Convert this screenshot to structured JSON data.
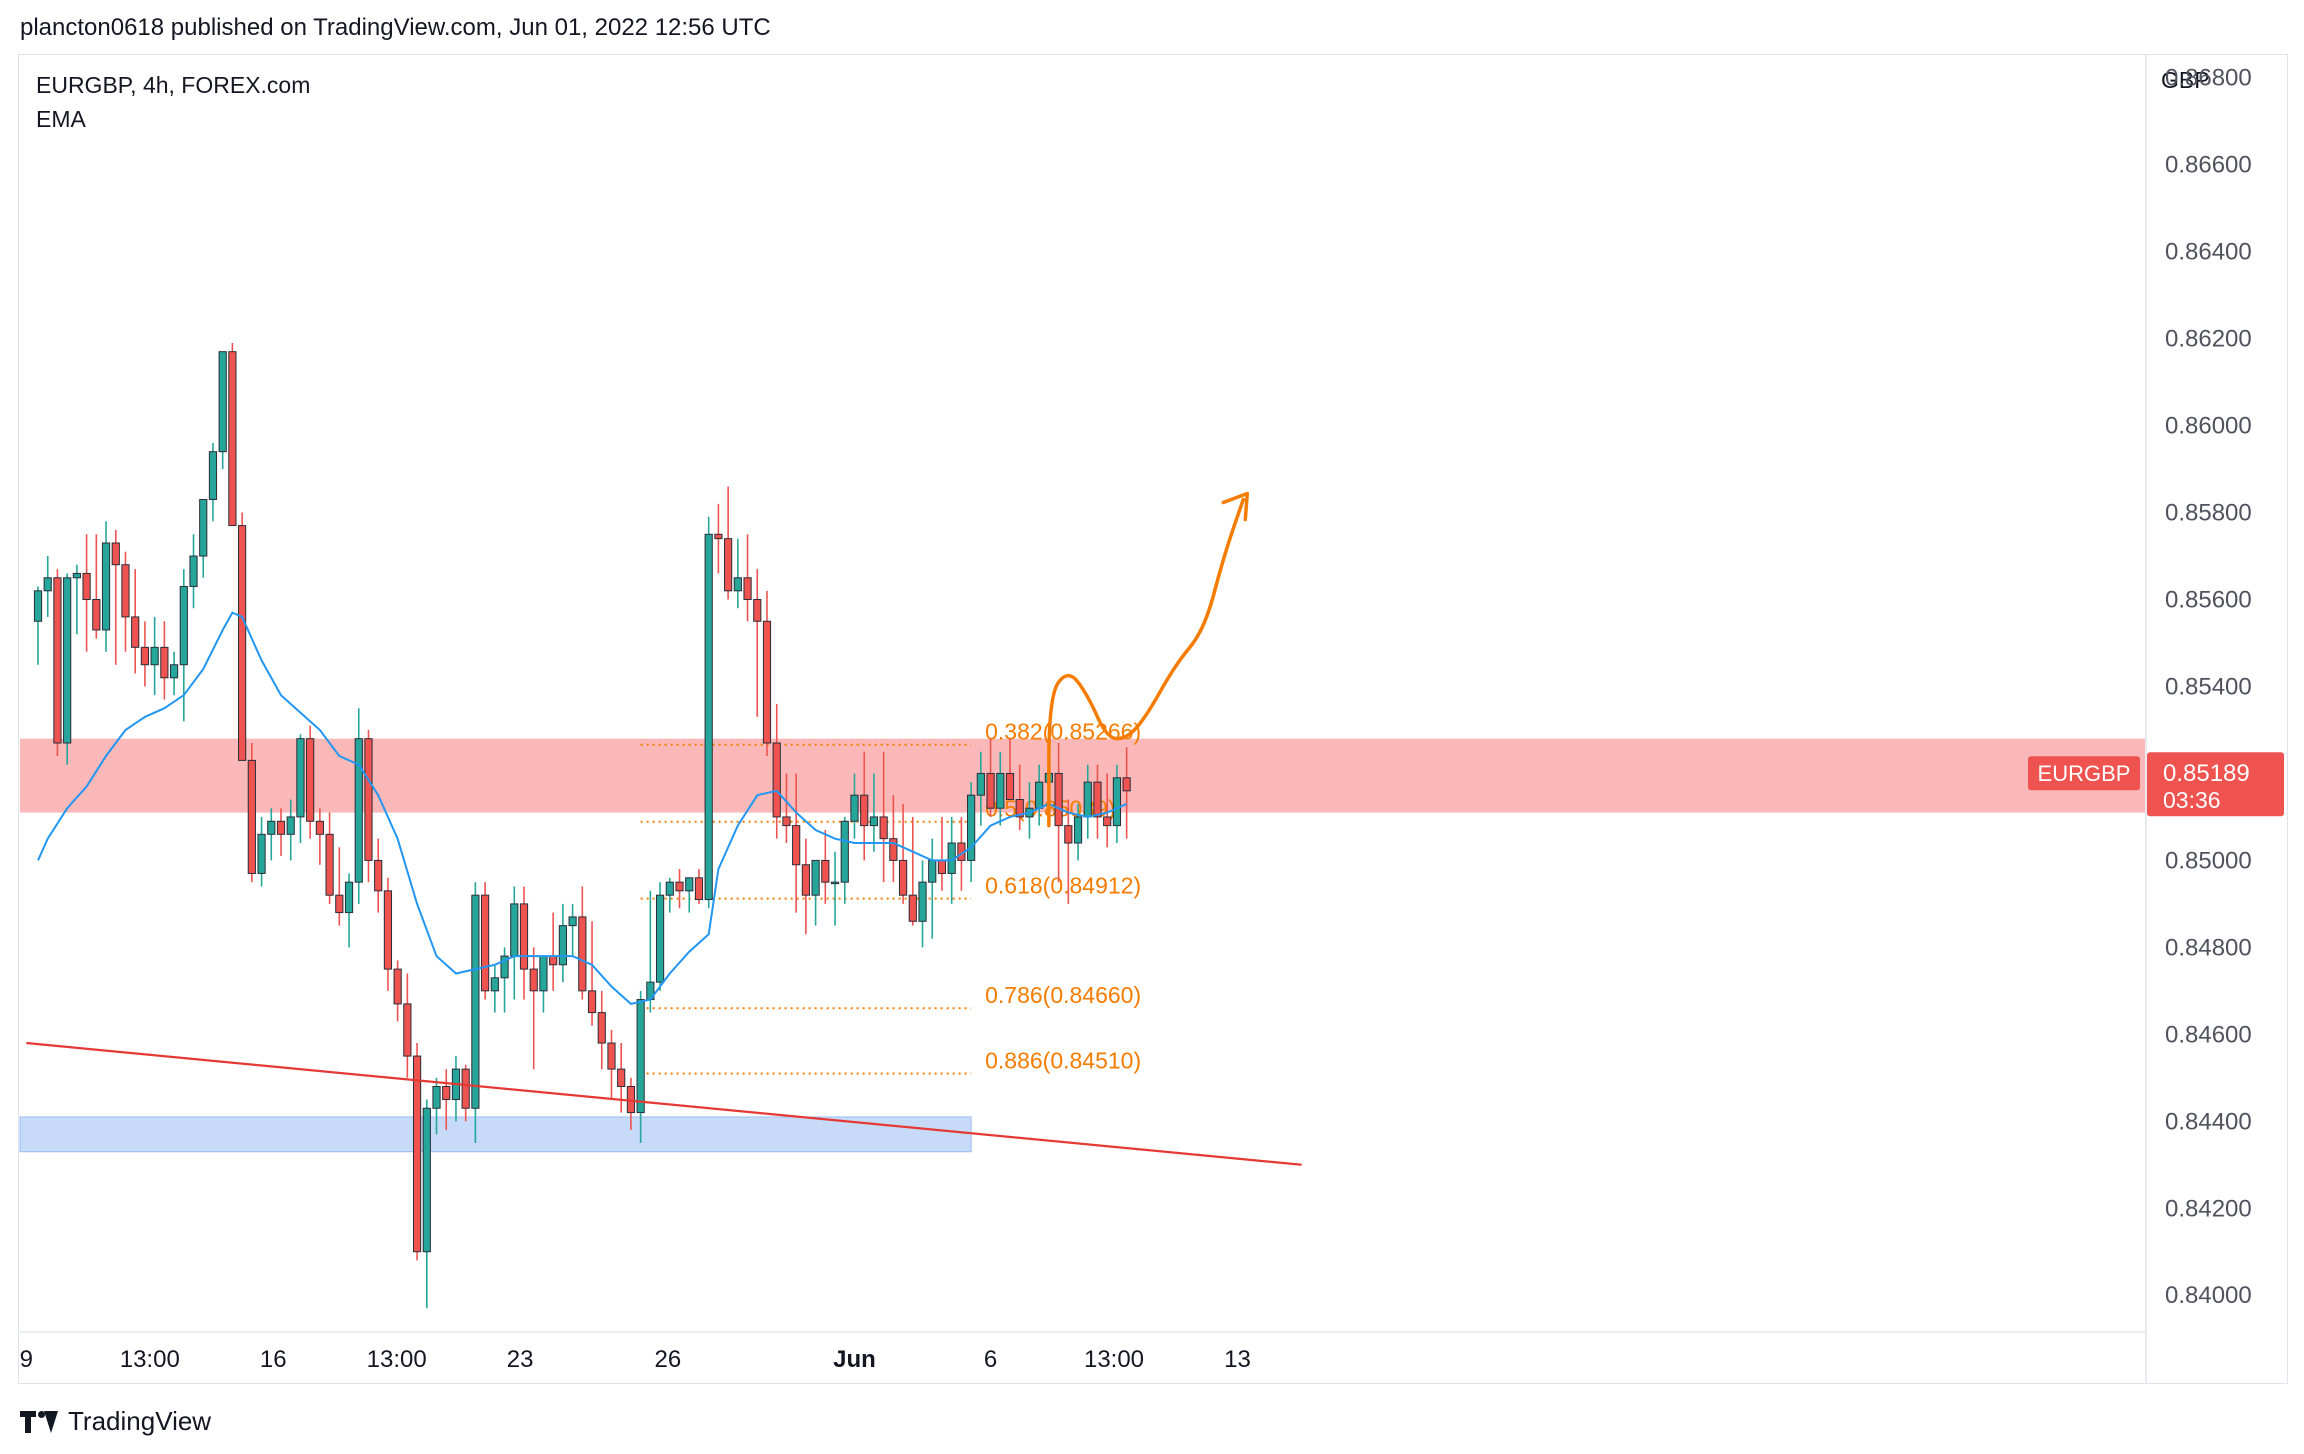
{
  "header": {
    "text": "plancton0618 published on TradingView.com, Jun 01, 2022 12:56 UTC"
  },
  "legend": {
    "symbol": "EURGBP, 4h, FOREX.com",
    "indicator": "EMA"
  },
  "footer": {
    "brand": "TradingView",
    "logo_icon": "tradingview-logo-icon"
  },
  "colors": {
    "up": "#26a69a",
    "down": "#ef5350",
    "ema": "#2196f3",
    "fib": "#f57c00",
    "resistance_zone": "#f9a0a0",
    "support_zone": "#a9c7f5",
    "trendline": "#e53935",
    "price_tag": "#ef5350"
  },
  "chart_data": {
    "type": "candlestick",
    "currency": "GBP",
    "y_ticks": [
      "0.86800",
      "0.86600",
      "0.86400",
      "0.86200",
      "0.86000",
      "0.85800",
      "0.85600",
      "0.85400",
      "0.85200",
      "0.85000",
      "0.84800",
      "0.84600",
      "0.84400",
      "0.84200",
      "0.84000"
    ],
    "ylim": [
      0.8392,
      0.8685
    ],
    "x_ticks": [
      {
        "label": "9",
        "bar": -1.2
      },
      {
        "label": "13:00",
        "bar": 11.5
      },
      {
        "label": "16",
        "bar": 24.2
      },
      {
        "label": "13:00",
        "bar": 36.9
      },
      {
        "label": "23",
        "bar": 49.6
      },
      {
        "label": "26",
        "bar": 64.8
      },
      {
        "label": "Jun",
        "bar": 84.0,
        "bold": true
      },
      {
        "label": "6",
        "bar": 98.0
      },
      {
        "label": "13:00",
        "bar": 110.7
      },
      {
        "label": "13",
        "bar": 123.4
      }
    ],
    "last_price": {
      "symbol": "EURGBP",
      "value": "0.85189",
      "countdown": "03:36"
    },
    "ohlc": [
      [
        0.8555,
        0.8563,
        0.8545,
        0.8562
      ],
      [
        0.8562,
        0.857,
        0.8556,
        0.8565
      ],
      [
        0.8565,
        0.8567,
        0.8524,
        0.8527
      ],
      [
        0.8527,
        0.8566,
        0.8522,
        0.8565
      ],
      [
        0.8565,
        0.8568,
        0.8552,
        0.8566
      ],
      [
        0.8566,
        0.8575,
        0.8548,
        0.856
      ],
      [
        0.856,
        0.8575,
        0.8551,
        0.8553
      ],
      [
        0.8553,
        0.8578,
        0.8548,
        0.8573
      ],
      [
        0.8573,
        0.8576,
        0.8545,
        0.8568
      ],
      [
        0.8568,
        0.8571,
        0.8548,
        0.8556
      ],
      [
        0.8556,
        0.8567,
        0.8543,
        0.8549
      ],
      [
        0.8549,
        0.8555,
        0.854,
        0.8545
      ],
      [
        0.8545,
        0.8556,
        0.8538,
        0.8549
      ],
      [
        0.8549,
        0.8555,
        0.8537,
        0.8542
      ],
      [
        0.8542,
        0.8548,
        0.8538,
        0.8545
      ],
      [
        0.8545,
        0.8567,
        0.8532,
        0.8563
      ],
      [
        0.8563,
        0.8575,
        0.8558,
        0.857
      ],
      [
        0.857,
        0.8582,
        0.8565,
        0.8583
      ],
      [
        0.8583,
        0.8596,
        0.8578,
        0.8594
      ],
      [
        0.8594,
        0.8617,
        0.859,
        0.8617
      ],
      [
        0.8617,
        0.8619,
        0.8577,
        0.8577
      ],
      [
        0.8577,
        0.858,
        0.8523,
        0.8523
      ],
      [
        0.8523,
        0.8527,
        0.8495,
        0.8497
      ],
      [
        0.8497,
        0.851,
        0.8494,
        0.8506
      ],
      [
        0.8506,
        0.8512,
        0.85,
        0.8509
      ],
      [
        0.8509,
        0.8512,
        0.8501,
        0.8506
      ],
      [
        0.8506,
        0.8514,
        0.85,
        0.851
      ],
      [
        0.851,
        0.8529,
        0.8504,
        0.8528
      ],
      [
        0.8528,
        0.8531,
        0.8505,
        0.8509
      ],
      [
        0.8509,
        0.8512,
        0.8499,
        0.8506
      ],
      [
        0.8506,
        0.8511,
        0.849,
        0.8492
      ],
      [
        0.8492,
        0.8503,
        0.8485,
        0.8488
      ],
      [
        0.8488,
        0.8497,
        0.848,
        0.8495
      ],
      [
        0.8495,
        0.8535,
        0.849,
        0.8528
      ],
      [
        0.8528,
        0.853,
        0.8495,
        0.85
      ],
      [
        0.85,
        0.8505,
        0.8488,
        0.8493
      ],
      [
        0.8493,
        0.8496,
        0.847,
        0.8475
      ],
      [
        0.8475,
        0.8477,
        0.8463,
        0.8467
      ],
      [
        0.8467,
        0.8474,
        0.845,
        0.8455
      ],
      [
        0.8455,
        0.8458,
        0.8408,
        0.841
      ],
      [
        0.841,
        0.8445,
        0.8397,
        0.8443
      ],
      [
        0.8443,
        0.845,
        0.8437,
        0.8448
      ],
      [
        0.8448,
        0.8452,
        0.8438,
        0.8445
      ],
      [
        0.8445,
        0.8455,
        0.844,
        0.8452
      ],
      [
        0.8452,
        0.8453,
        0.844,
        0.8443
      ],
      [
        0.8443,
        0.8495,
        0.8435,
        0.8492
      ],
      [
        0.8492,
        0.8495,
        0.8468,
        0.847
      ],
      [
        0.847,
        0.8476,
        0.8465,
        0.8473
      ],
      [
        0.8473,
        0.848,
        0.8465,
        0.8478
      ],
      [
        0.8478,
        0.8494,
        0.8468,
        0.849
      ],
      [
        0.849,
        0.8494,
        0.8468,
        0.8475
      ],
      [
        0.8475,
        0.848,
        0.8452,
        0.847
      ],
      [
        0.847,
        0.8478,
        0.8465,
        0.8478
      ],
      [
        0.8478,
        0.8488,
        0.847,
        0.8476
      ],
      [
        0.8476,
        0.849,
        0.8472,
        0.8485
      ],
      [
        0.8485,
        0.849,
        0.8478,
        0.8487
      ],
      [
        0.8487,
        0.8494,
        0.8468,
        0.847
      ],
      [
        0.847,
        0.8486,
        0.8462,
        0.8465
      ],
      [
        0.8465,
        0.847,
        0.8452,
        0.8458
      ],
      [
        0.8458,
        0.8461,
        0.8445,
        0.8452
      ],
      [
        0.8452,
        0.8458,
        0.8442,
        0.8448
      ],
      [
        0.8448,
        0.845,
        0.8438,
        0.8442
      ],
      [
        0.8442,
        0.847,
        0.8435,
        0.8468
      ],
      [
        0.8468,
        0.8493,
        0.8465,
        0.8472
      ],
      [
        0.8472,
        0.8495,
        0.847,
        0.8492
      ],
      [
        0.8492,
        0.8496,
        0.8488,
        0.8495
      ],
      [
        0.8495,
        0.8498,
        0.8489,
        0.8493
      ],
      [
        0.8493,
        0.8496,
        0.8488,
        0.8496
      ],
      [
        0.8496,
        0.8498,
        0.849,
        0.8491
      ],
      [
        0.8491,
        0.8579,
        0.8489,
        0.8575
      ],
      [
        0.8575,
        0.8582,
        0.8566,
        0.8574
      ],
      [
        0.8574,
        0.8586,
        0.856,
        0.8562
      ],
      [
        0.8562,
        0.8574,
        0.8558,
        0.8565
      ],
      [
        0.8565,
        0.8575,
        0.8555,
        0.856
      ],
      [
        0.856,
        0.8567,
        0.8533,
        0.8555
      ],
      [
        0.8555,
        0.8562,
        0.8524,
        0.8527
      ],
      [
        0.8527,
        0.8536,
        0.8505,
        0.851
      ],
      [
        0.851,
        0.852,
        0.8504,
        0.8508
      ],
      [
        0.8508,
        0.852,
        0.8488,
        0.8499
      ],
      [
        0.8499,
        0.8505,
        0.8483,
        0.8492
      ],
      [
        0.8492,
        0.85,
        0.8485,
        0.85
      ],
      [
        0.85,
        0.8507,
        0.849,
        0.8495
      ],
      [
        0.8495,
        0.8502,
        0.8485,
        0.8495
      ],
      [
        0.8495,
        0.851,
        0.849,
        0.8509
      ],
      [
        0.8509,
        0.852,
        0.8505,
        0.8515
      ],
      [
        0.8515,
        0.8525,
        0.85,
        0.8508
      ],
      [
        0.8508,
        0.852,
        0.8502,
        0.851
      ],
      [
        0.851,
        0.8525,
        0.8495,
        0.8505
      ],
      [
        0.8505,
        0.8515,
        0.8495,
        0.85
      ],
      [
        0.85,
        0.8513,
        0.849,
        0.8492
      ],
      [
        0.8492,
        0.851,
        0.8485,
        0.8486
      ],
      [
        0.8486,
        0.85,
        0.848,
        0.8495
      ],
      [
        0.8495,
        0.8505,
        0.8482,
        0.85
      ],
      [
        0.85,
        0.851,
        0.8493,
        0.8497
      ],
      [
        0.8497,
        0.851,
        0.849,
        0.8504
      ],
      [
        0.8504,
        0.851,
        0.8493,
        0.85
      ],
      [
        0.85,
        0.8518,
        0.8495,
        0.8515
      ],
      [
        0.8515,
        0.8525,
        0.8508,
        0.852
      ],
      [
        0.852,
        0.8528,
        0.851,
        0.8512
      ],
      [
        0.8512,
        0.8525,
        0.8508,
        0.852
      ],
      [
        0.852,
        0.8528,
        0.8515,
        0.8514
      ],
      [
        0.8514,
        0.8522,
        0.8507,
        0.851
      ],
      [
        0.851,
        0.8518,
        0.8505,
        0.8512
      ],
      [
        0.8512,
        0.8522,
        0.8508,
        0.8518
      ],
      [
        0.8518,
        0.8526,
        0.8515,
        0.852
      ],
      [
        0.852,
        0.8527,
        0.8495,
        0.8508
      ],
      [
        0.8508,
        0.8514,
        0.849,
        0.8504
      ],
      [
        0.8504,
        0.8513,
        0.85,
        0.851
      ],
      [
        0.851,
        0.8522,
        0.8505,
        0.8518
      ],
      [
        0.8518,
        0.8522,
        0.8505,
        0.851
      ],
      [
        0.851,
        0.852,
        0.8503,
        0.8508
      ],
      [
        0.8508,
        0.8522,
        0.8504,
        0.8519
      ],
      [
        0.8519,
        0.8526,
        0.8505,
        0.8516
      ]
    ],
    "ema": [
      [
        0,
        0.85
      ],
      [
        1,
        0.8505
      ],
      [
        3,
        0.8512
      ],
      [
        5,
        0.8517
      ],
      [
        7,
        0.8524
      ],
      [
        9,
        0.853
      ],
      [
        11,
        0.8533
      ],
      [
        13,
        0.8535
      ],
      [
        15,
        0.8538
      ],
      [
        17,
        0.8544
      ],
      [
        19,
        0.8553
      ],
      [
        20,
        0.8557
      ],
      [
        21,
        0.8556
      ],
      [
        23,
        0.8546
      ],
      [
        25,
        0.8538
      ],
      [
        27,
        0.8534
      ],
      [
        29,
        0.853
      ],
      [
        31,
        0.8524
      ],
      [
        33,
        0.8522
      ],
      [
        35,
        0.8515
      ],
      [
        37,
        0.8505
      ],
      [
        39,
        0.849
      ],
      [
        41,
        0.8478
      ],
      [
        43,
        0.8474
      ],
      [
        45,
        0.8475
      ],
      [
        47,
        0.8476
      ],
      [
        49,
        0.8478
      ],
      [
        51,
        0.8478
      ],
      [
        53,
        0.8478
      ],
      [
        55,
        0.8478
      ],
      [
        57,
        0.8476
      ],
      [
        59,
        0.8471
      ],
      [
        61,
        0.8467
      ],
      [
        63,
        0.8468
      ],
      [
        65,
        0.8474
      ],
      [
        67,
        0.8479
      ],
      [
        69,
        0.8483
      ],
      [
        70,
        0.8498
      ],
      [
        72,
        0.8508
      ],
      [
        74,
        0.8515
      ],
      [
        76,
        0.8516
      ],
      [
        78,
        0.8511
      ],
      [
        80,
        0.8507
      ],
      [
        82,
        0.8505
      ],
      [
        84,
        0.8504
      ],
      [
        86,
        0.8504
      ],
      [
        88,
        0.8504
      ],
      [
        90,
        0.8502
      ],
      [
        92,
        0.85
      ],
      [
        94,
        0.85
      ],
      [
        96,
        0.8503
      ],
      [
        98,
        0.8508
      ],
      [
        100,
        0.851
      ],
      [
        102,
        0.8511
      ],
      [
        104,
        0.8513
      ],
      [
        106,
        0.8511
      ],
      [
        108,
        0.851
      ],
      [
        110,
        0.8511
      ],
      [
        112,
        0.8513
      ]
    ],
    "fib_levels": [
      {
        "label": "0.382(0.85266)",
        "price": 0.85266
      },
      {
        "label": "0.5(0.85089)",
        "price": 0.85089
      },
      {
        "label": "0.618(0.84912)",
        "price": 0.84912
      },
      {
        "label": "0.786(0.84660)",
        "price": 0.8466
      },
      {
        "label": "0.886(0.84510)",
        "price": 0.8451
      }
    ],
    "fib_start_bar": 62,
    "fib_end_bar": 96,
    "resistance_zone": {
      "from": 0.8511,
      "to": 0.8528
    },
    "support_zone": {
      "from": 0.8433,
      "to": 0.8441,
      "end_bar": 96
    },
    "trendline": {
      "start": [
        -1.2,
        0.8458
      ],
      "end": [
        130.0,
        0.843
      ]
    },
    "projection_path": [
      [
        104,
        0.8508
      ],
      [
        104,
        0.8538
      ],
      [
        106,
        0.8544
      ],
      [
        108,
        0.8538
      ],
      [
        110,
        0.8528
      ],
      [
        112,
        0.8528
      ],
      [
        114,
        0.8533
      ],
      [
        117,
        0.8545
      ],
      [
        120,
        0.8553
      ],
      [
        122,
        0.857
      ],
      [
        124,
        0.8583
      ]
    ]
  }
}
